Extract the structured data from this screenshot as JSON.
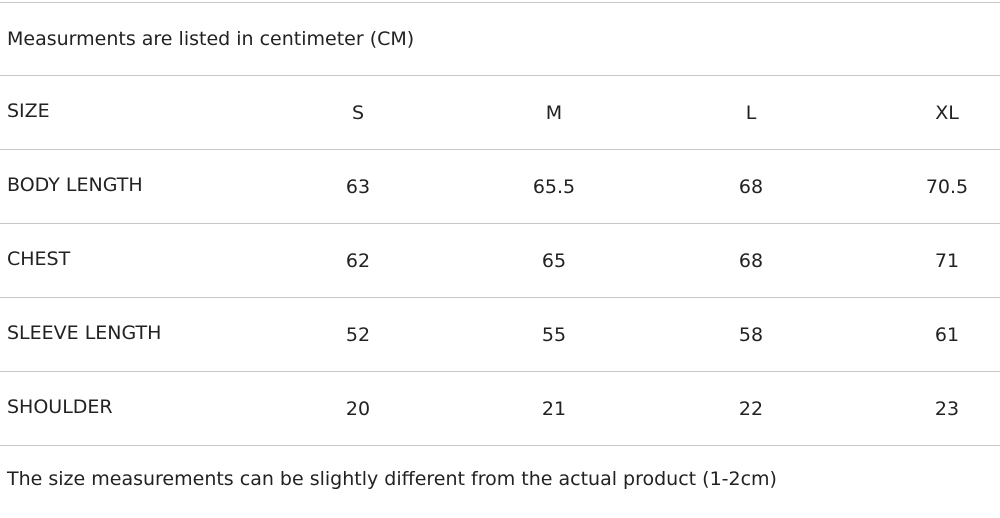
{
  "note_top": "Measurments are listed in centimeter (CM)",
  "table": {
    "header": [
      "SIZE",
      "S",
      "M",
      "L",
      "XL"
    ],
    "rows": [
      [
        "BODY LENGTH",
        63,
        65.5,
        68,
        70.5
      ],
      [
        "CHEST",
        62,
        65,
        68,
        71
      ],
      [
        "SLEEVE LENGTH",
        52,
        55,
        58,
        61
      ],
      [
        "SHOULDER",
        20,
        21,
        22,
        23
      ]
    ]
  },
  "note_bottom": "The size measurements can be slightly different from the actual product (1-2cm)"
}
